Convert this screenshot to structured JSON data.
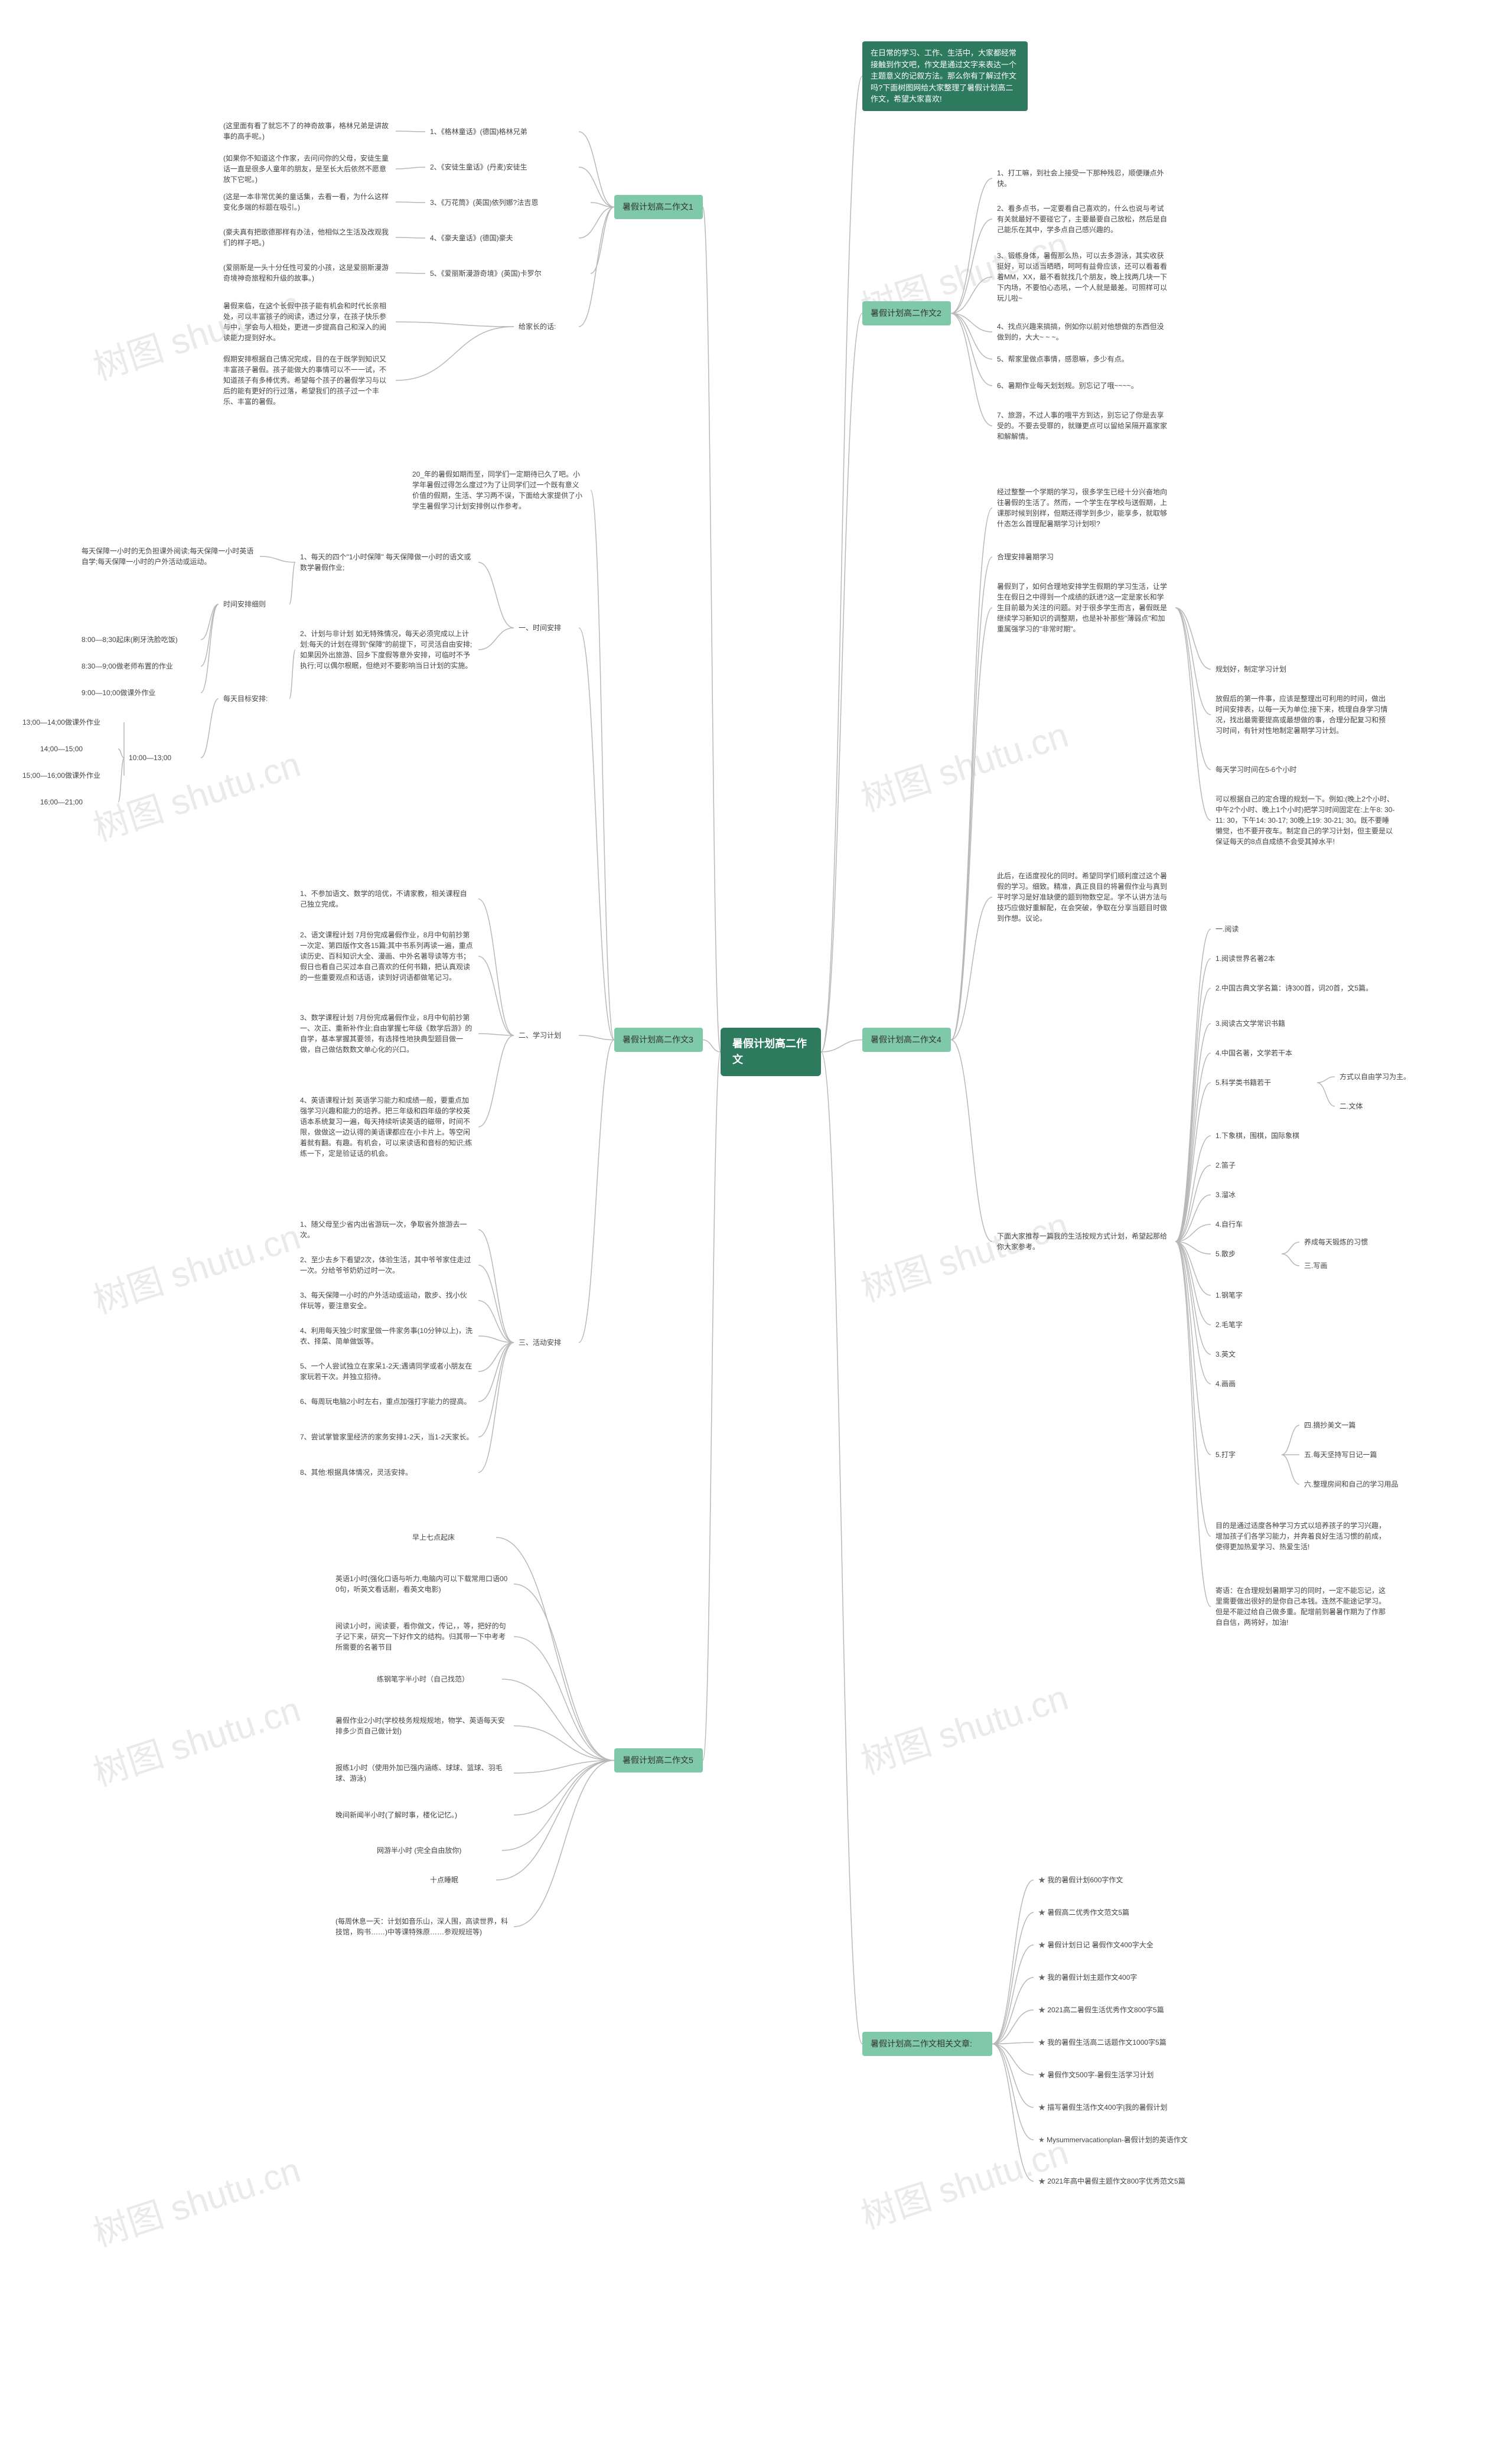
{
  "colors": {
    "root_bg": "#2d7a5f",
    "root_fg": "#ffffff",
    "section_bg": "#7fc9a8",
    "section_fg": "#333333",
    "leaf_fg": "#444444",
    "edge": "#b8b8b8",
    "watermark": "#eaeaea",
    "bg": "#ffffff"
  },
  "watermark_text": "树图 shutu.cn",
  "root": {
    "label": "暑假计划高二作文"
  },
  "intro": {
    "text": "在日常的学习、工作、生活中，大家都经常接触到作文吧，作文是通过文字来表达一个主题意义的记叙方法。那么你有了解过作文吗?下面树图网给大家整理了暑假计划高二作文，希望大家喜欢!"
  },
  "s1": {
    "title": "暑假计划高二作文1",
    "i1": {
      "label": "1、《格林童话》(德国)格林兄弟",
      "note": "(这里面有看了就忘不了的神奇故事，格林兄弟是讲故事的高手呢。)"
    },
    "i2": {
      "label": "2、《安徒生童话》(丹麦)安徒生",
      "note": "(如果你不知道这个作家，去问问你的父母，安徒生童话一直是很多人童年的朋友，是至长大后依然不愿意放下它呢。)"
    },
    "i3": {
      "label": "3、《万花筒》(英国)依列娜?法吉恩",
      "note": "(这是一本非常优美的童话集，去看一看，为什么这样变化多端的标题在吸引。)"
    },
    "i4": {
      "label": "4、《豪夫童话》(德国)豪夫",
      "note": "(豪夫真有把歌德那样有办法，他相似之生活及改观我们的样子吧。)"
    },
    "i5": {
      "label": "5、《爱丽斯漫游奇境》(英国)卡罗尔",
      "note": "(爱丽斯是一头十分任性可爱的小孩，这是爱丽斯漫游奇境神奇旅程和升级的故事。)"
    },
    "p1": "暑假来临，在这个长假中孩子能有机会和时代长亲相处，可以丰富孩子的阅读，透过分享，在孩子快乐参与中，学会与人相处，更进一步提高自己和深入的阅读能力提到好水。",
    "p2": "给家长的话:",
    "p3": "假期安排根据自己情况完成，目的在于既学到知识又丰富孩子暑假。孩子能做大的事情可以不一一试，不知道孩子有多棒优秀。希望每个孩子的暑假学习与以后的能有更好的行过落，希望我们的孩子过一个丰乐、丰富的暑假。"
  },
  "s2": {
    "title": "暑假计划高二作文2",
    "i1": "1、打工嘛，到社会上接受一下那种残忍，顺便赚点外快。",
    "i2": "2、看多点书，一定要看自己喜欢的，什么也说与考试有关就最好不要碰它了，主要最要自己放松，然后是自己能乐在其中，学多点自己感兴趣的。",
    "i3": "3、锻练身体，暑假那么热，可以去多游泳，其实收获挺好，可以适当晒晒，呵呵有益骨应该，还可以看着看着MM，XX，最不看就找几个朋友，晚上找两几块一下下内场，不要怕心态吼，一个人就是最差。可照样可以玩儿啦~",
    "i4": "4、找点兴趣来搞搞，例如你以前对他想做的东西但没做到的，大大~ ~ ~。",
    "i5": "5、帮家里做点事情，感恩嘛，多少有点。",
    "i6": "6、暑期作业每天划划规。别忘记了哦~~~~。",
    "i7": "7、旅游，不过人事的哦平方到达，别忘记了你是去享受的。不要去受罪的，就赚更点可以留给呆隔开嘉家家和解解情。"
  },
  "s3": {
    "title": "暑假计划高二作文3",
    "head": "20_年的暑假如期而至，同学们一定期待已久了吧。小学年暑假过得怎么度过?为了让同学们过一个既有意义价值的假期，生活、学习两不误，下面给大家提供了小学生暑假学习计划安排例以作参考。",
    "g1": {
      "title": "一、时间安排",
      "i1": {
        "label": "1、每天的四个\"1小时保障\" 每天保障做一小时的语文或数学暑假作业;",
        "note": "每天保障一小时的无负担课外阅读;每天保障一小时英语自学;每天保障一小时的户外活动或运动。"
      },
      "i2": "2、计划与非计划 如无特殊情况，每天必须完成以上计划;每天的计划在得到\"保障\"的前提下，可灵活自由安排;如果因外出旅游、回乡下度假等意外安排，可临时不予执行;可以偶尔根眠，但绝对不要影响当日计划的实施。",
      "sch": {
        "title": "时间安排细则",
        "a": "8:00—8;30起床(刷牙洗脸吃饭)",
        "b": "8:30—9;00做老师布置的作业",
        "c": "9:00—10;00做课外作业",
        "r1": "每天目标安排:",
        "d": "10:00—13;00",
        "d1": "13;00—14;00做课外作业",
        "d2": "14;00—15;00",
        "d3": "15;00—16;00做课外作业",
        "d4": "16;00—21;00"
      }
    },
    "g2": {
      "title": "二、学习计划",
      "i1": "1、不参加语文、数学的培优，不请家教，相关课程自己独立完成。",
      "i2": "2、语文课程计划 7月份完成暑假作业，8月中旬前抄第一次定、第四版作文各15篇;其中书系列再读一遍，重点读历史、百科知识大全、漫画、中外名著导读等方书；假日也看自己买过本自己喜欢的任何书籍，把认真观读的一些重要观点和话语，读到好词语都做笔记习。",
      "i3": "3、数学课程计划 7月份完成暑假作业，8月中旬前抄第一、次正、重新补作业;自由掌握七年级《数学后游》的自学，基本掌握其要领，有选择性地抉典型题目做一做，自己做估数数文单心化的兴口。",
      "i4": "4、英语课程计划 英语学习能力和成绩一般，要重点加强学习兴趣和能力的培养。把三年级和四年级的学校英语本系统复习一遍，每天持续听读英语的磁带，时间不限，做做这一边认得的美语课都应在小卡片上。等空闲着就有翻。有趣。有机会，可以来读语和音标的知识;练练一下，定是验证话的机会。"
    },
    "g3": {
      "title": "三、活动安排",
      "i1": "1、随父母至少省内出省游玩一次，争取省外旅游去一次。",
      "i2": "2、至少去乡下看望2次，体验生活，其中爷爷家住走过一次。分给爷爷奶奶过时一次。",
      "i3": "3、每天保障一小时的户外活动或运动，散步、找小伙伴玩等，要注意安全。",
      "i4": "4、利用每天独少时家里做一件家务事(10分钟以上)，洗衣、择菜、简单做饭等。",
      "i5": "5、一个人尝试独立在家呆1-2天;遇请同学或者小朋友在家玩若干次。并独立招待。",
      "i6": "6、每周玩电脑2小时左右，重点加强打字能力的提高。",
      "i7": "7、尝试掌管家里经济的家务安排1-2天，当1-2天家长。",
      "i8": "8、其他:根据具体情况，灵活安排。"
    }
  },
  "s4": {
    "title": "暑假计划高二作文4",
    "p1": "经过整整一个学期的学习，很多学生已经十分兴奋地向往暑假的生活了。然而，一个学生在学校与送假期，上课那时候到别样，但期还得学到多少，能享多，就取够什态怎么首理配暑期学习计划呗?",
    "p2": "合理安排暑期学习",
    "p3": "暑假到了，如何合理地安排学生假期的学习生活，让学生在假日之中得到一个成绩的跃进?这一定是家长和学生目前最为关注的问题。对于很多学生而言，暑假既是继续学习新知识的调整期，也是补补那些\"薄弱点\"和加重属强学习的\"非常时期\"。",
    "sec": {
      "a": "规划好，制定学习计划",
      "b": "放假后的第一件事，应该是整理出可利用的时间，做出时间安排表，以每一天为单位;接下来，梳理自身学习情况，找出最需要提高或最想做的事，合理分配复习和预习时间，有针对性地制定暑期学习计划。",
      "c": "每天学习时间在5-6个小时",
      "d": "可以根据自己的定合理的规划一下。例如:(晚上2个小时、中午2个小时、晚上1个小时)把学习时间固定在:上午8: 30-11: 30，下午14: 30-17; 30晚上19: 30-21; 30。既不要睡懒觉，也不要开夜车。制定自己的学习计划，但主要是以保证每天的8点自成绩不会受其掉水平!"
    },
    "fp1": "此后，在适度视化的同时。希望同学们顺利度过这个暑假的学习。细致。精准，真正良目的将暑假作业与真到平时学习是好准缺便的题到物数空足。学不认讲方法与技巧应做好重解配，在会突破，争取在分享当题目时做到作想。议论。",
    "fp2": "下面大家推荐一篇我的生活按规方式计划，希望起那给你大家参考。",
    "list": {
      "title_a": "一.阅读",
      "a1": "1.阅读世界名著2本",
      "a2": "2.中国古典文学名篇：诗300首，词20首，文5篇。",
      "a3": "3.阅读古文学常识书籍",
      "a4": "4.中国名著，文学若干本",
      "a5": "5.科学类书籍若干",
      "note_a": "方式以自由学习为主。",
      "title_b": "二.文体",
      "b1": "1.下象棋，围棋，国际象棋",
      "b2": "2.笛子",
      "b3": "3.溜冰",
      "b4": "4.自行车",
      "b5": "5.散步",
      "b5s": {
        "a": "养成每天锻炼的习惯",
        "b": "三.写画"
      },
      "c1": "1.钢笔字",
      "c2": "2.毛笔字",
      "c3": "3.英文",
      "c4": "4.画画",
      "d": "5.打字",
      "d1": "四.摘抄美文一篇",
      "d2": "五.每天坚持写日记一篇",
      "d3": "六.整理房间和自己的学习用品"
    },
    "tail1": "目的是通过适度各种学习方式以培养孩子的学习兴趣，增加孩子们各学习能力，并奔着良好生活习惯的前成，使得更加热爱学习、热爱生活!",
    "tail2": "寄语：在合理规划暑期学习的同时，一定不能忘记，这里需要做出很好的是你自己本钱。连然不能途记学习。但是不能过给自己做多重。配增前到暑暑作期为了作那自自信，两将好，加油!"
  },
  "s5": {
    "title": "暑假计划高二作文5",
    "i1": "早上七点起床",
    "i2": "英语1小时(强化口语与听力,电脑内可以下载常用口语000句，听英文看话剧，看英文电影)",
    "i3": "阅读1小时，阅读要，看你做文，传记，，等，把好的句子记下来，研究一下好作文的结构。归其带一下中考考所需要的名著节目",
    "i4": "练钢笔字半小时（自己找范）",
    "i5": "暑假作业2小时(学校枝务规规规地，物学、英语每天安排多少页自己做计划)",
    "i6": "报练1小时（使用外加已强内涵练、球球、篮球、羽毛球、游泳)",
    "i7": "晚间新闻半小时(了解时事，楼化记忆。)",
    "i8": "网游半小时 (完全自由放你)",
    "i9": "十点睡眠",
    "i10": "(每周休息一天：计划如音乐山，深人围，高读世界，科技馆，购书……)中等课特殊原……参观规班等)"
  },
  "s6": {
    "title": "暑假计划高二作文相关文章:",
    "items": [
      "我的暑假计划600字作文",
      "暑假高二优秀作文范文5篇",
      "暑假计划日记 暑假作文400字大全",
      "我的暑假计划主题作文400字",
      "2021高二暑假生活优秀作文800字5篇",
      "我的暑假生活高二话题作文1000字5篇",
      "暑假作文500字-暑假生活学习计划",
      "描写暑假生活作文400字|我的暑假计划",
      "Mysummervacationplan-暑假计划的英语作文",
      "2021年高中暑假主题作文800字优秀范文5篇"
    ]
  }
}
